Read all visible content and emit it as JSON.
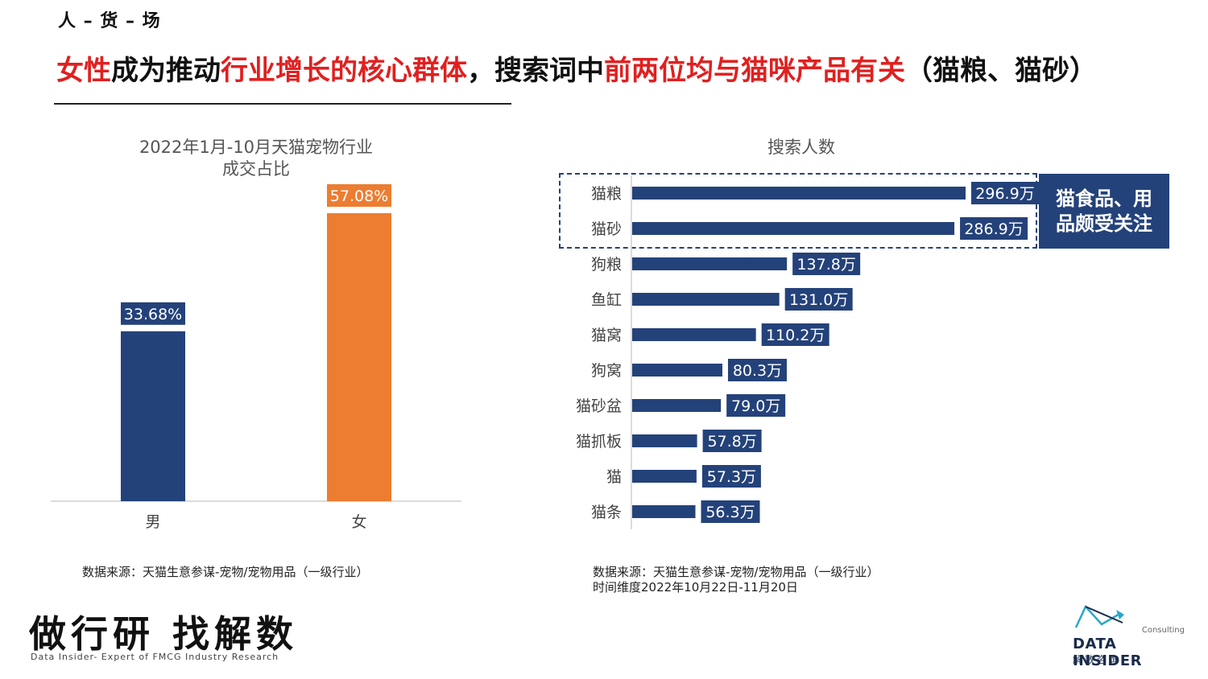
{
  "header": {
    "section_tag": "人 – 货 – 场",
    "headline_parts": [
      {
        "text": "女性",
        "highlight": true
      },
      {
        "text": "成为推动",
        "highlight": false
      },
      {
        "text": "行业增长的核心群体",
        "highlight": true
      },
      {
        "text": "，搜索词中",
        "highlight": false
      },
      {
        "text": "前两位均与猫咪产品有关",
        "highlight": true
      },
      {
        "text": "（猫粮、猫砂）",
        "highlight": false
      }
    ]
  },
  "chart_data": [
    {
      "type": "bar",
      "title": "2022年1月-10月天猫宠物行业\n成交占比",
      "title_lines": [
        "2022年1月-10月天猫宠物行业",
        "成交占比"
      ],
      "categories": [
        "男",
        "女"
      ],
      "values": [
        33.68,
        57.08
      ],
      "value_labels": [
        "33.68%",
        "57.08%"
      ],
      "colors": [
        "#24427a",
        "#ec7d31"
      ],
      "ylim": [
        0,
        60
      ],
      "grid": false
    },
    {
      "type": "bar",
      "orientation": "horizontal",
      "title": "搜索人数",
      "categories": [
        "猫粮",
        "猫砂",
        "狗粮",
        "鱼缸",
        "猫窝",
        "狗窝",
        "猫砂盆",
        "猫抓板",
        "猫",
        "猫条"
      ],
      "values": [
        296.9,
        286.9,
        137.8,
        131.0,
        110.2,
        80.3,
        79.0,
        57.8,
        57.3,
        56.3
      ],
      "value_labels": [
        "296.9万",
        "286.9万",
        "137.8万",
        "131.0万",
        "110.2万",
        "80.3万",
        "79.0万",
        "57.8万",
        "57.3万",
        "56.3万"
      ],
      "unit": "万",
      "color": "#24427a",
      "xlim": [
        0,
        300
      ],
      "grid": false
    }
  ],
  "callout": {
    "line1": "猫食品、用",
    "line2": "品颇受关注"
  },
  "sources": {
    "left": "数据来源：天猫生意参谋-宠物/宠物用品（一级行业）",
    "right_line1": "数据来源：天猫生意参谋-宠物/宠物用品（一级行业）",
    "right_line2": "时间维度2022年10月22日-11月20日"
  },
  "footer": {
    "brand_cn": "做行研 找解数",
    "brand_en": "Data Insider- Expert of FMCG Industry Research",
    "logo_consult": "Consulting",
    "logo_name": "DATA INSIDER",
    "logo_cn": "解数咨询"
  },
  "colors": {
    "accent_red": "#e02020",
    "navy": "#24427a",
    "orange": "#ec7d31"
  }
}
